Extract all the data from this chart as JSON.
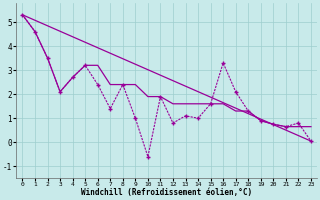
{
  "xlabel": "Windchill (Refroidissement éolien,°C)",
  "x_data": [
    0,
    1,
    2,
    3,
    4,
    5,
    6,
    7,
    8,
    9,
    10,
    11,
    12,
    13,
    14,
    15,
    16,
    17,
    18,
    19,
    20,
    21,
    22,
    23
  ],
  "y_zigzag": [
    5.3,
    4.6,
    3.5,
    2.1,
    2.7,
    3.2,
    2.4,
    1.4,
    2.4,
    1.0,
    -0.6,
    1.9,
    0.8,
    1.1,
    1.0,
    1.6,
    3.3,
    2.1,
    1.3,
    0.9,
    0.75,
    0.65,
    0.8,
    0.05
  ],
  "y_smooth": [
    5.3,
    4.6,
    3.5,
    2.1,
    2.7,
    3.2,
    3.2,
    2.4,
    2.4,
    2.4,
    1.9,
    1.9,
    1.6,
    1.6,
    1.6,
    1.6,
    1.6,
    1.3,
    1.3,
    0.9,
    0.75,
    0.65,
    0.65,
    0.65
  ],
  "trend_x": [
    0,
    23
  ],
  "trend_y": [
    5.3,
    0.05
  ],
  "line_color": "#990099",
  "bg_color": "#c8eaea",
  "grid_color": "#9ecece",
  "ylim": [
    -1.5,
    5.8
  ],
  "xlim": [
    -0.5,
    23.5
  ],
  "yticks": [
    -1,
    0,
    1,
    2,
    3,
    4,
    5
  ],
  "xticks": [
    0,
    1,
    2,
    3,
    4,
    5,
    6,
    7,
    8,
    9,
    10,
    11,
    12,
    13,
    14,
    15,
    16,
    17,
    18,
    19,
    20,
    21,
    22,
    23
  ]
}
